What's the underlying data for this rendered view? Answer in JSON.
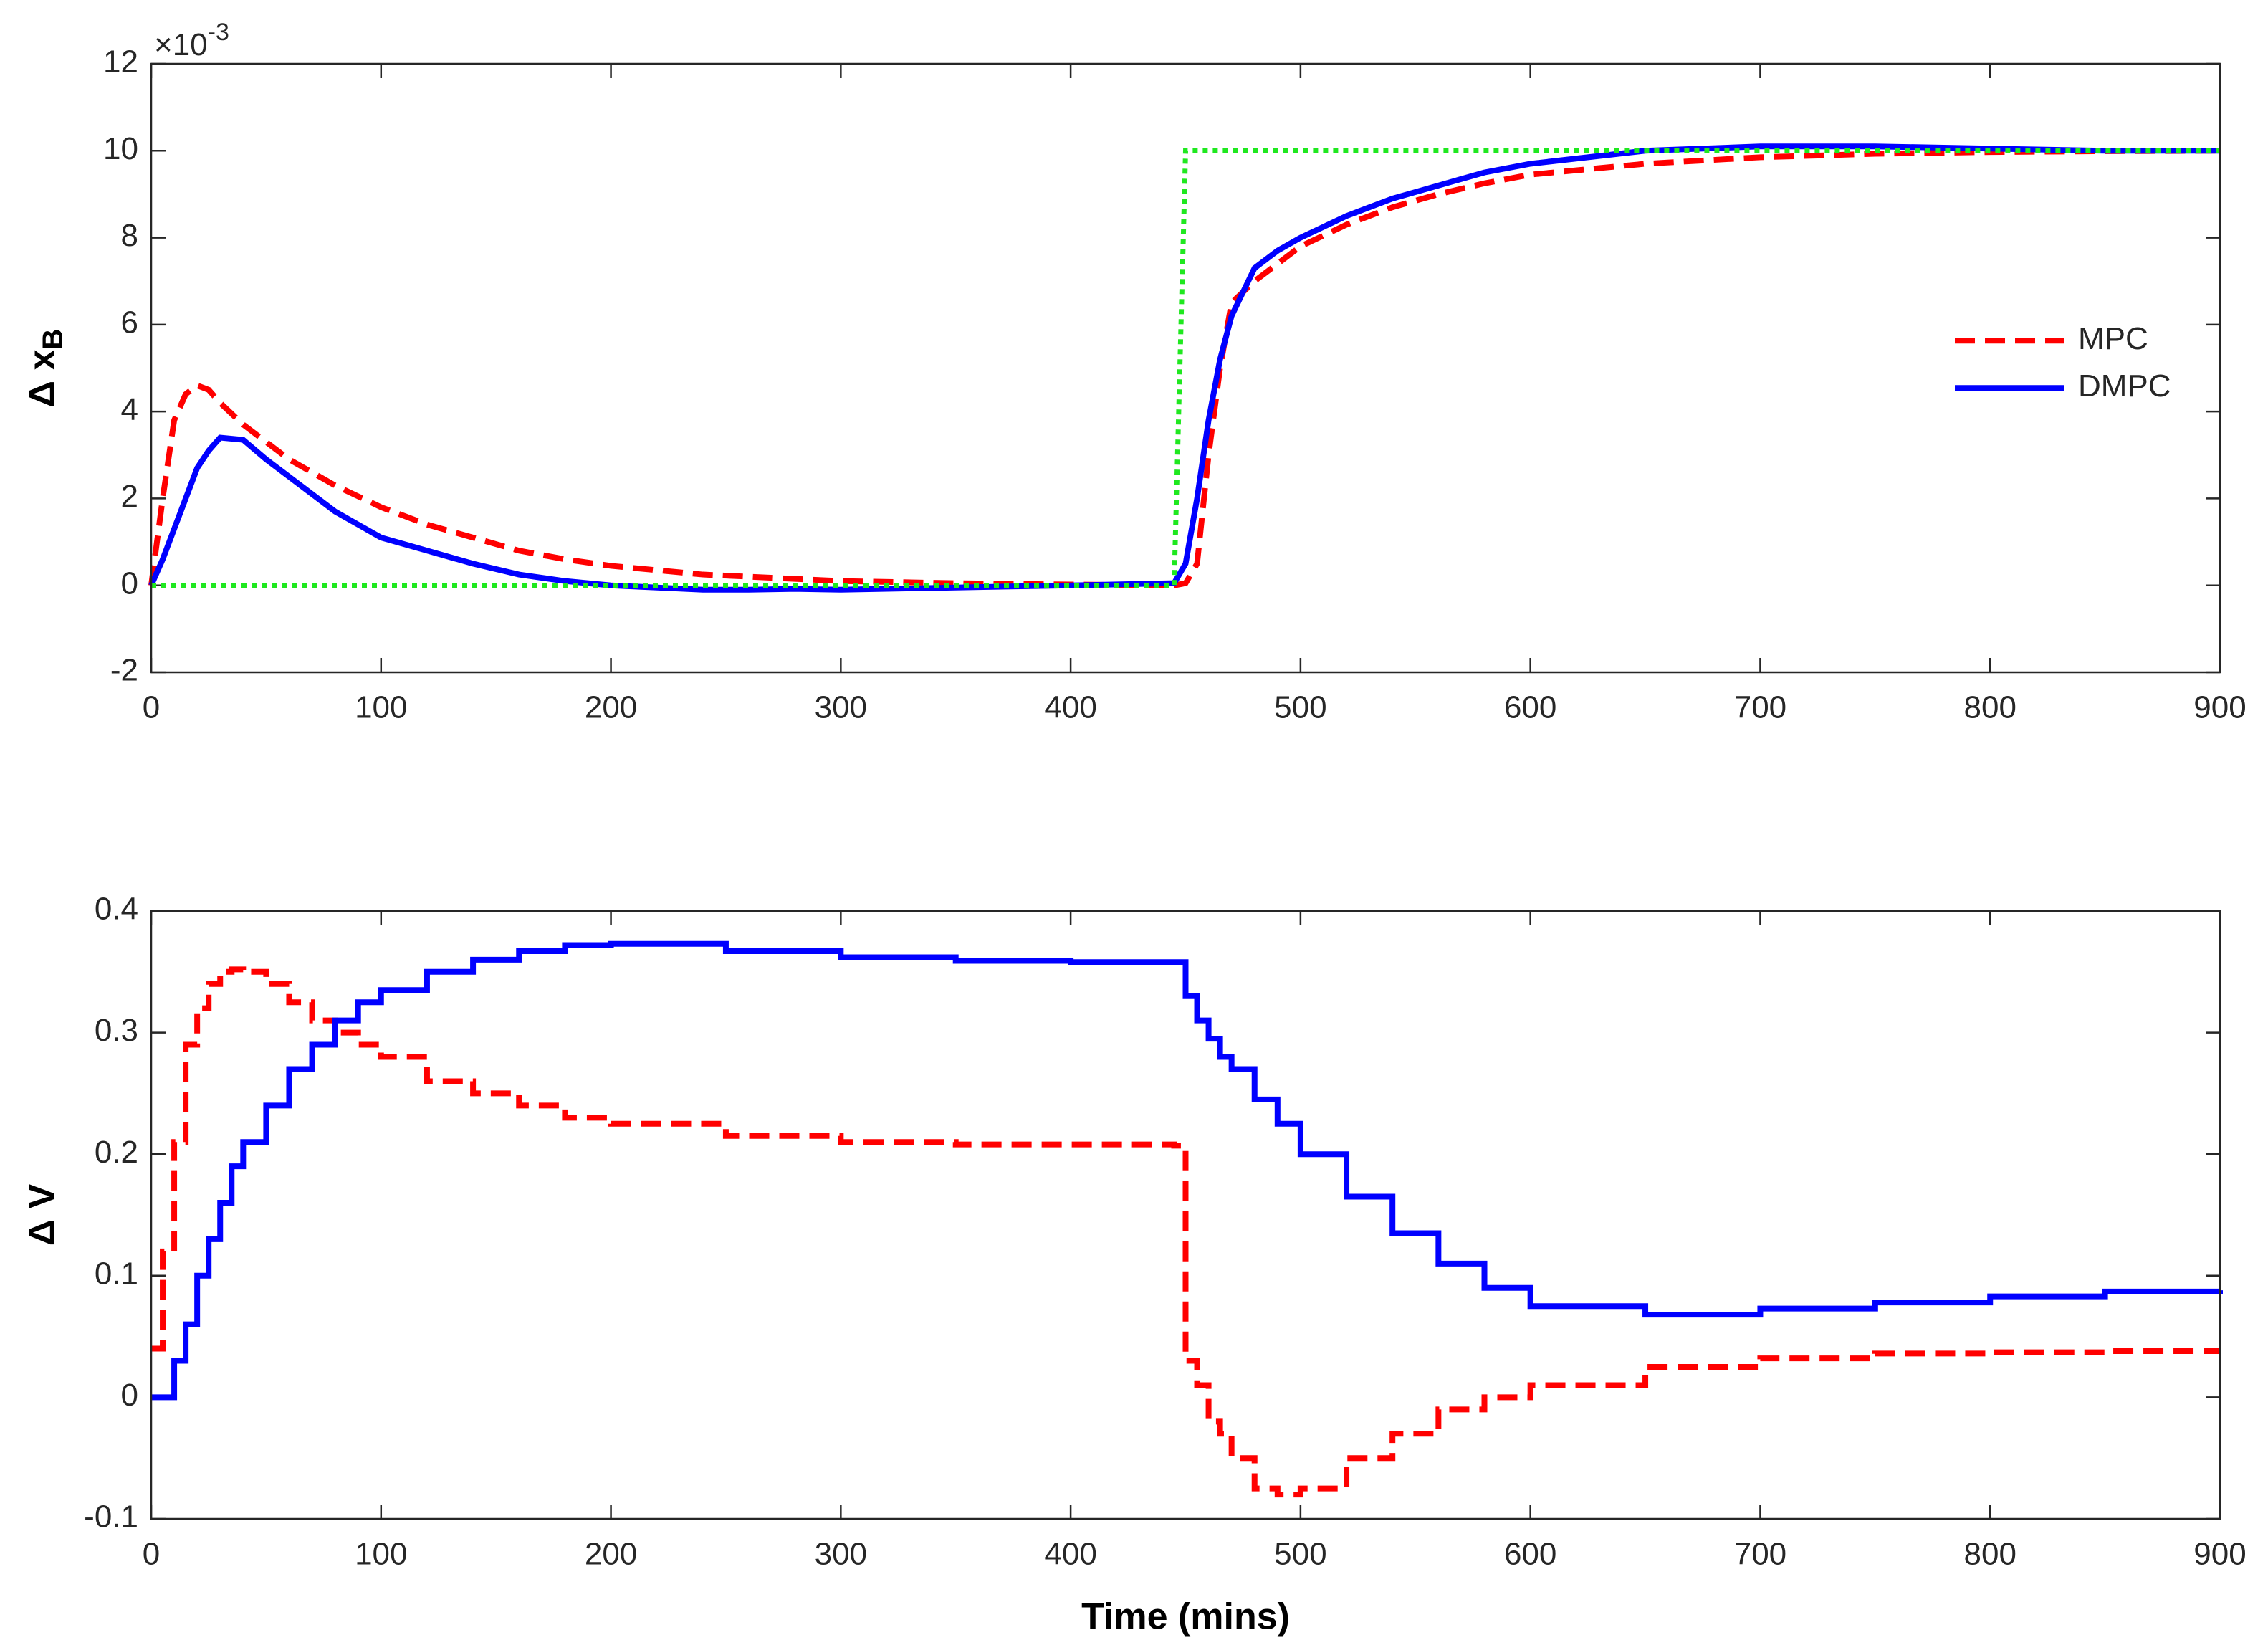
{
  "chart_data": [
    {
      "type": "line",
      "ylabel": "Δ x",
      "ylabel_sub": "B",
      "yscale_label": "×10",
      "yscale_exponent": "-3",
      "x": [
        0,
        5,
        10,
        15,
        20,
        25,
        30,
        40,
        50,
        60,
        80,
        100,
        120,
        140,
        160,
        180,
        200,
        220,
        240,
        260,
        280,
        300,
        350,
        400,
        445,
        450,
        455,
        460,
        465,
        470,
        480,
        490,
        500,
        520,
        540,
        560,
        580,
        600,
        650,
        700,
        750,
        800,
        850,
        900
      ],
      "series": [
        {
          "name": "MPC",
          "color": "#ff0000",
          "style": "dashed",
          "values": [
            0,
            2.0,
            3.8,
            4.4,
            4.6,
            4.5,
            4.2,
            3.7,
            3.3,
            2.9,
            2.3,
            1.8,
            1.4,
            1.1,
            0.8,
            0.6,
            0.45,
            0.35,
            0.25,
            0.2,
            0.15,
            0.1,
            0.05,
            0.02,
            0,
            0.05,
            0.5,
            3.0,
            5.0,
            6.5,
            7.0,
            7.4,
            7.8,
            8.3,
            8.7,
            9.0,
            9.25,
            9.45,
            9.7,
            9.85,
            9.93,
            9.97,
            9.99,
            10
          ]
        },
        {
          "name": "DMPC",
          "color": "#0000ff",
          "style": "solid",
          "values": [
            0,
            0.6,
            1.3,
            2.0,
            2.7,
            3.1,
            3.4,
            3.35,
            2.9,
            2.5,
            1.7,
            1.1,
            0.8,
            0.5,
            0.25,
            0.1,
            0.0,
            -0.05,
            -0.1,
            -0.1,
            -0.08,
            -0.1,
            -0.05,
            0,
            0.05,
            0.5,
            2.0,
            3.8,
            5.2,
            6.2,
            7.3,
            7.7,
            8.0,
            8.5,
            8.9,
            9.2,
            9.5,
            9.7,
            10.0,
            10.1,
            10.1,
            10.05,
            10.0,
            10.0
          ]
        },
        {
          "color": "#1fe81f",
          "style": "dotted",
          "values": [
            0,
            0,
            0,
            0,
            0,
            0,
            0,
            0,
            0,
            0,
            0,
            0,
            0,
            0,
            0,
            0,
            0,
            0,
            0,
            0,
            0,
            0,
            0,
            0,
            0,
            10,
            10,
            10,
            10,
            10,
            10,
            10,
            10,
            10,
            10,
            10,
            10,
            10,
            10,
            10,
            10,
            10,
            10,
            10
          ]
        }
      ],
      "xlim": [
        0,
        900
      ],
      "xticks": [
        0,
        100,
        200,
        300,
        400,
        500,
        600,
        700,
        800,
        900
      ],
      "ylim": [
        -2,
        12
      ],
      "yticks": [
        -2,
        0,
        2,
        4,
        6,
        8,
        10,
        12
      ],
      "legend": "east"
    },
    {
      "type": "line",
      "step": true,
      "ylabel": "Δ V",
      "xlabel": "Time (mins)",
      "x": [
        0,
        5,
        10,
        15,
        20,
        25,
        30,
        35,
        40,
        50,
        60,
        70,
        80,
        90,
        100,
        120,
        140,
        160,
        180,
        200,
        250,
        300,
        350,
        400,
        445,
        450,
        455,
        460,
        465,
        470,
        480,
        490,
        500,
        520,
        540,
        560,
        580,
        600,
        650,
        700,
        750,
        800,
        850,
        900
      ],
      "series": [
        {
          "color": "#ff0000",
          "style": "dashed",
          "values": [
            0.04,
            0.12,
            0.21,
            0.29,
            0.32,
            0.34,
            0.35,
            0.352,
            0.35,
            0.34,
            0.325,
            0.31,
            0.3,
            0.29,
            0.28,
            0.26,
            0.25,
            0.24,
            0.23,
            0.225,
            0.215,
            0.21,
            0.208,
            0.208,
            0.207,
            0.03,
            0.01,
            -0.02,
            -0.03,
            -0.05,
            -0.075,
            -0.08,
            -0.075,
            -0.05,
            -0.03,
            -0.01,
            0.0,
            0.01,
            0.025,
            0.032,
            0.036,
            0.037,
            0.038,
            0.038
          ]
        },
        {
          "color": "#0000ff",
          "style": "solid",
          "values": [
            0,
            0,
            0.03,
            0.06,
            0.1,
            0.13,
            0.16,
            0.19,
            0.21,
            0.24,
            0.27,
            0.29,
            0.31,
            0.325,
            0.335,
            0.35,
            0.36,
            0.367,
            0.372,
            0.373,
            0.367,
            0.362,
            0.359,
            0.358,
            0.358,
            0.33,
            0.31,
            0.295,
            0.28,
            0.27,
            0.245,
            0.225,
            0.2,
            0.165,
            0.135,
            0.11,
            0.09,
            0.075,
            0.068,
            0.073,
            0.078,
            0.083,
            0.087,
            0.088
          ]
        }
      ],
      "xlim": [
        0,
        900
      ],
      "xticks": [
        0,
        100,
        200,
        300,
        400,
        500,
        600,
        700,
        800,
        900
      ],
      "ylim": [
        -0.1,
        0.4
      ],
      "yticks": [
        -0.1,
        0,
        0.1,
        0.2,
        0.3,
        0.4
      ]
    }
  ]
}
